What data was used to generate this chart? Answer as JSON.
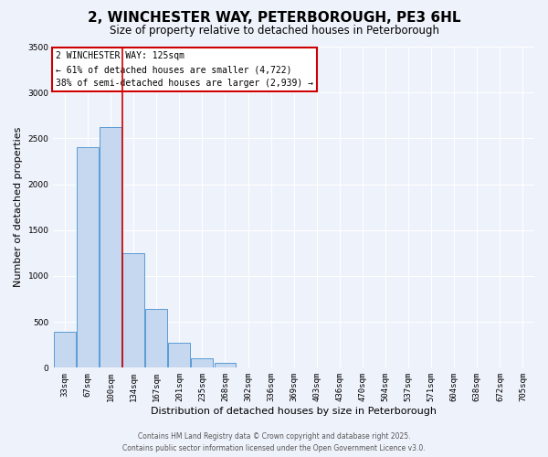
{
  "title": "2, WINCHESTER WAY, PETERBOROUGH, PE3 6HL",
  "subtitle": "Size of property relative to detached houses in Peterborough",
  "xlabel": "Distribution of detached houses by size in Peterborough",
  "ylabel": "Number of detached properties",
  "categories": [
    "33sqm",
    "67sqm",
    "100sqm",
    "134sqm",
    "167sqm",
    "201sqm",
    "235sqm",
    "268sqm",
    "302sqm",
    "336sqm",
    "369sqm",
    "403sqm",
    "436sqm",
    "470sqm",
    "504sqm",
    "537sqm",
    "571sqm",
    "604sqm",
    "638sqm",
    "672sqm",
    "705sqm"
  ],
  "values": [
    390,
    2400,
    2620,
    1250,
    640,
    270,
    105,
    55,
    0,
    0,
    0,
    0,
    0,
    0,
    0,
    0,
    0,
    0,
    0,
    0,
    0
  ],
  "bar_color": "#c5d8f0",
  "bar_edge_color": "#5b9bd5",
  "background_color": "#eef2fb",
  "grid_color": "#ffffff",
  "vline_color": "#cc0000",
  "annotation_box_text": "2 WINCHESTER WAY: 125sqm\n← 61% of detached houses are smaller (4,722)\n38% of semi-detached houses are larger (2,939) →",
  "annotation_box_color": "#cc0000",
  "annotation_box_bg": "#ffffff",
  "ylim": [
    0,
    3500
  ],
  "yticks": [
    0,
    500,
    1000,
    1500,
    2000,
    2500,
    3000,
    3500
  ],
  "footer_line1": "Contains HM Land Registry data © Crown copyright and database right 2025.",
  "footer_line2": "Contains public sector information licensed under the Open Government Licence v3.0.",
  "title_fontsize": 11,
  "subtitle_fontsize": 8.5,
  "tick_fontsize": 6.5,
  "ylabel_fontsize": 8,
  "xlabel_fontsize": 8,
  "annotation_fontsize": 7,
  "footer_fontsize": 5.5
}
